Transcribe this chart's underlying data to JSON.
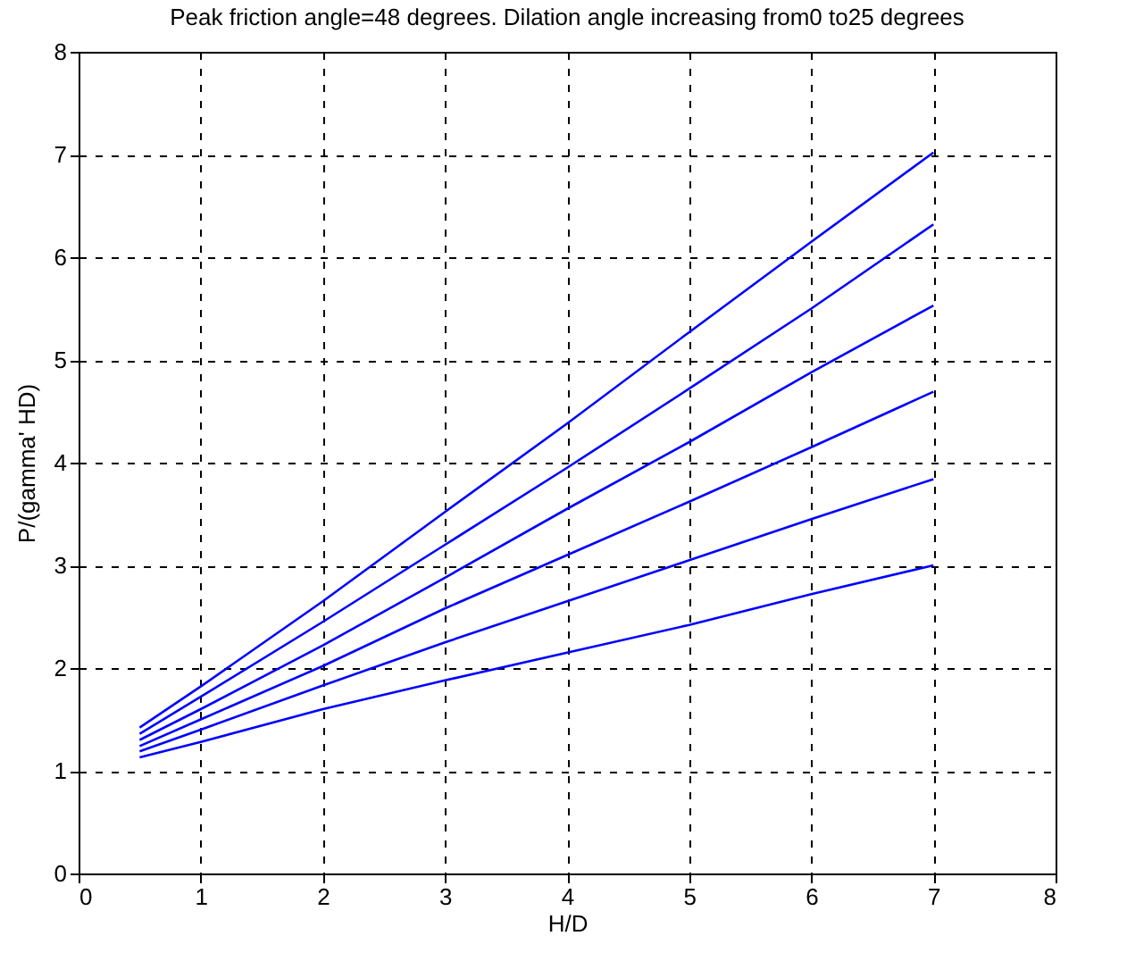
{
  "chart_data": {
    "type": "line",
    "title": "Peak friction angle=48 degrees. Dilation angle increasing from0 to25 degrees",
    "xlabel": "H/D",
    "ylabel": "P/(gamma' HD)",
    "x": [
      0.5,
      1,
      2,
      3,
      4,
      5,
      6,
      7
    ],
    "series": [
      {
        "color": "#0000ff",
        "values": [
          1.42,
          1.82,
          2.65,
          3.52,
          4.38,
          5.27,
          6.15,
          7.02
        ]
      },
      {
        "color": "#0000ff",
        "values": [
          1.36,
          1.72,
          2.45,
          3.2,
          3.95,
          4.72,
          5.5,
          6.32
        ]
      },
      {
        "color": "#0000ff",
        "values": [
          1.3,
          1.6,
          2.22,
          2.88,
          3.55,
          4.2,
          4.88,
          5.53
        ]
      },
      {
        "color": "#0000ff",
        "values": [
          1.24,
          1.5,
          2.02,
          2.58,
          3.1,
          3.62,
          4.15,
          4.69
        ]
      },
      {
        "color": "#0000ff",
        "values": [
          1.19,
          1.4,
          1.83,
          2.25,
          2.65,
          3.05,
          3.45,
          3.84
        ]
      },
      {
        "color": "#0000ff",
        "values": [
          1.13,
          1.28,
          1.6,
          1.88,
          2.15,
          2.42,
          2.72,
          3.0
        ]
      }
    ],
    "xlim": [
      0,
      8
    ],
    "ylim": [
      0,
      8
    ],
    "xticks": [
      0,
      1,
      2,
      3,
      4,
      5,
      6,
      7,
      8
    ],
    "yticks": [
      0,
      1,
      2,
      3,
      4,
      5,
      6,
      7,
      8
    ],
    "grid": true,
    "line_style": "solid",
    "marker": "none"
  }
}
